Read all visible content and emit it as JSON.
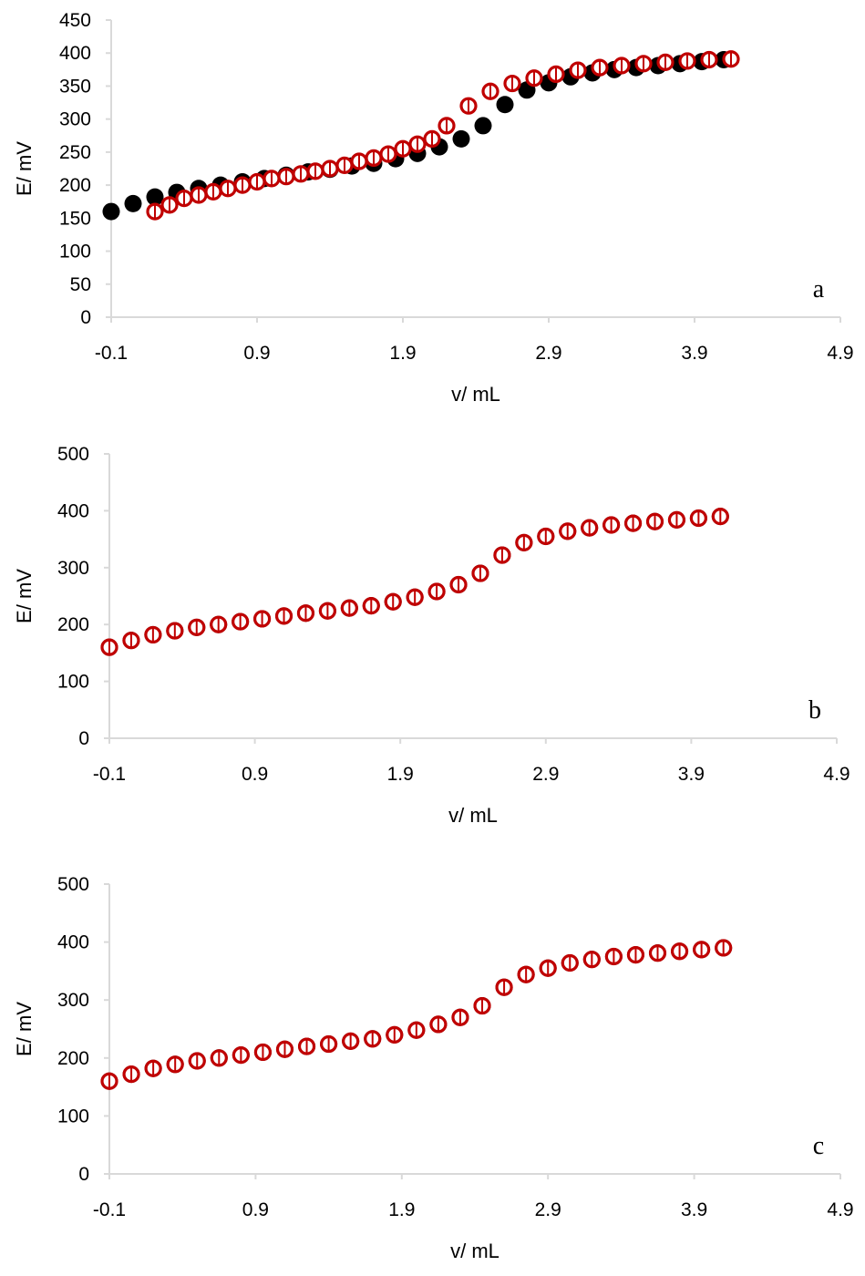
{
  "chart_data": [
    {
      "type": "scatter",
      "panel_label": "a",
      "xlabel": "v/ mL",
      "ylabel": "E/ mV",
      "xlim": [
        -0.1,
        4.9
      ],
      "ylim": [
        0,
        450
      ],
      "xticks": [
        "-0.1",
        "0.9",
        "1.9",
        "2.9",
        "3.9",
        "4.9"
      ],
      "yticks": [
        "0",
        "50",
        "100",
        "150",
        "200",
        "250",
        "300",
        "350",
        "400",
        "450"
      ],
      "grid": false,
      "series": [
        {
          "color": "#000000",
          "marker": "filled-circle",
          "x": [
            -0.1,
            0.05,
            0.2,
            0.35,
            0.5,
            0.65,
            0.8,
            0.95,
            1.1,
            1.25,
            1.4,
            1.55,
            1.7,
            1.85,
            2.0,
            2.15,
            2.3,
            2.45,
            2.6,
            2.75,
            2.9,
            3.05,
            3.2,
            3.35,
            3.5,
            3.65,
            3.8,
            3.95,
            4.1
          ],
          "y": [
            160,
            172,
            182,
            189,
            195,
            200,
            205,
            210,
            215,
            220,
            224,
            229,
            233,
            240,
            248,
            258,
            270,
            290,
            322,
            344,
            355,
            364,
            370,
            375,
            378,
            381,
            384,
            387,
            390
          ]
        },
        {
          "color": "#c00000",
          "marker": "open-circle",
          "x": [
            0.2,
            0.3,
            0.4,
            0.5,
            0.6,
            0.7,
            0.8,
            0.9,
            1.0,
            1.1,
            1.2,
            1.3,
            1.4,
            1.5,
            1.6,
            1.7,
            1.8,
            1.9,
            2.0,
            2.1,
            2.2,
            2.35,
            2.5,
            2.65,
            2.8,
            2.95,
            3.1,
            3.25,
            3.4,
            3.55,
            3.7,
            3.85,
            4.0,
            4.15
          ],
          "y": [
            160,
            170,
            180,
            185,
            190,
            195,
            200,
            205,
            210,
            213,
            217,
            221,
            225,
            230,
            236,
            241,
            247,
            255,
            262,
            270,
            290,
            320,
            342,
            354,
            362,
            368,
            374,
            378,
            381,
            384,
            386,
            388,
            390,
            391
          ]
        }
      ]
    },
    {
      "type": "scatter",
      "panel_label": "b",
      "xlabel": "v/ mL",
      "ylabel": "E/ mV",
      "xlim": [
        -0.1,
        4.9
      ],
      "ylim": [
        0,
        500
      ],
      "xticks": [
        "-0.1",
        "0.9",
        "1.9",
        "2.9",
        "3.9",
        "4.9"
      ],
      "yticks": [
        "0",
        "100",
        "200",
        "300",
        "400",
        "500"
      ],
      "grid": false,
      "series": [
        {
          "color": "#000000",
          "marker": "filled-circle",
          "x": [
            -0.1,
            0.05,
            0.2,
            0.35,
            0.5,
            0.65,
            0.8,
            0.95,
            1.1,
            1.25,
            1.4,
            1.55,
            1.7,
            1.85,
            2.0,
            2.15,
            2.3,
            2.45,
            2.6,
            2.75,
            2.9,
            3.05,
            3.2,
            3.35,
            3.5,
            3.65,
            3.8,
            3.95,
            4.1
          ],
          "y": [
            160,
            172,
            182,
            189,
            195,
            200,
            205,
            210,
            215,
            220,
            224,
            229,
            233,
            240,
            248,
            258,
            270,
            290,
            322,
            344,
            355,
            364,
            370,
            375,
            378,
            381,
            384,
            387,
            390
          ]
        },
        {
          "color": "#c00000",
          "marker": "open-circle",
          "x": [
            -0.1,
            0.05,
            0.2,
            0.35,
            0.5,
            0.65,
            0.8,
            0.95,
            1.1,
            1.25,
            1.4,
            1.55,
            1.7,
            1.85,
            2.0,
            2.15,
            2.3,
            2.45,
            2.6,
            2.75,
            2.9,
            3.05,
            3.2,
            3.35,
            3.5,
            3.65,
            3.8,
            3.95,
            4.1
          ],
          "y": [
            160,
            172,
            182,
            189,
            195,
            200,
            205,
            210,
            215,
            220,
            224,
            229,
            233,
            240,
            248,
            258,
            270,
            290,
            322,
            344,
            355,
            364,
            370,
            375,
            378,
            381,
            384,
            387,
            390
          ]
        }
      ]
    },
    {
      "type": "scatter",
      "panel_label": "c",
      "xlabel": "v/ mL",
      "ylabel": "E/ mV",
      "xlim": [
        -0.1,
        4.9
      ],
      "ylim": [
        0,
        500
      ],
      "xticks": [
        "-0.1",
        "0.9",
        "1.9",
        "2.9",
        "3.9",
        "4.9"
      ],
      "yticks": [
        "0",
        "100",
        "200",
        "300",
        "400",
        "500"
      ],
      "grid": false,
      "series": [
        {
          "color": "#000000",
          "marker": "filled-circle",
          "x": [
            -0.1,
            0.05,
            0.2,
            0.35,
            0.5,
            0.65,
            0.8,
            0.95,
            1.1,
            1.25,
            1.4,
            1.55,
            1.7,
            1.85,
            2.0,
            2.15,
            2.3,
            2.45,
            2.6,
            2.75,
            2.9,
            3.05,
            3.2,
            3.35,
            3.5,
            3.65,
            3.8,
            3.95,
            4.1
          ],
          "y": [
            160,
            172,
            182,
            189,
            195,
            200,
            205,
            210,
            215,
            220,
            224,
            229,
            233,
            240,
            248,
            258,
            270,
            290,
            322,
            344,
            355,
            364,
            370,
            375,
            378,
            381,
            384,
            387,
            390
          ]
        },
        {
          "color": "#c00000",
          "marker": "open-circle",
          "x": [
            -0.1,
            0.05,
            0.2,
            0.35,
            0.5,
            0.65,
            0.8,
            0.95,
            1.1,
            1.25,
            1.4,
            1.55,
            1.7,
            1.85,
            2.0,
            2.15,
            2.3,
            2.45,
            2.6,
            2.75,
            2.9,
            3.05,
            3.2,
            3.35,
            3.5,
            3.65,
            3.8,
            3.95,
            4.1
          ],
          "y": [
            160,
            172,
            182,
            189,
            195,
            200,
            205,
            210,
            215,
            220,
            224,
            229,
            233,
            240,
            248,
            258,
            270,
            290,
            322,
            344,
            355,
            364,
            370,
            375,
            378,
            381,
            384,
            387,
            390
          ]
        }
      ]
    }
  ]
}
